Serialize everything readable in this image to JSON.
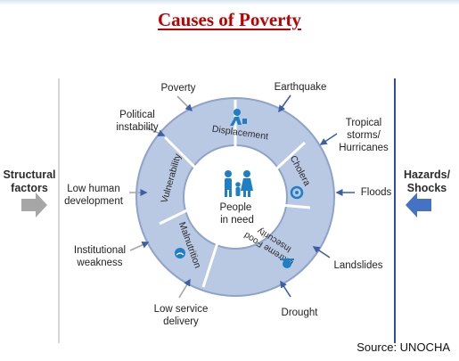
{
  "title": "Causes of Poverty",
  "center": {
    "line1": "People",
    "line2": "in need"
  },
  "ring": {
    "segments": [
      "Displacement",
      "Cholera",
      "Extreme Food Insecurity",
      "Malnutrition",
      "Vulnerability"
    ],
    "colors": {
      "ring": "#b9c8e3",
      "border": "#8ea3c9",
      "text": "#2a2a2a",
      "icon": "#1f7fc4"
    }
  },
  "left": {
    "heading": [
      "Structural",
      "factors"
    ],
    "labels": {
      "poverty": "Poverty",
      "political": [
        "Political",
        "instability"
      ],
      "low_human": [
        "Low human",
        "development"
      ],
      "institutional": [
        "Institutional",
        "weakness"
      ],
      "low_service": [
        "Low service",
        "delivery"
      ]
    }
  },
  "right": {
    "heading": [
      "Hazards/",
      "Shocks"
    ],
    "labels": {
      "earthquake": "Earthquake",
      "tropical": [
        "Tropical",
        "storms/",
        "Hurricanes"
      ],
      "floods": "Floods",
      "landslides": "Landslides",
      "drought": "Drought"
    }
  },
  "source": "Source: UNOCHA"
}
